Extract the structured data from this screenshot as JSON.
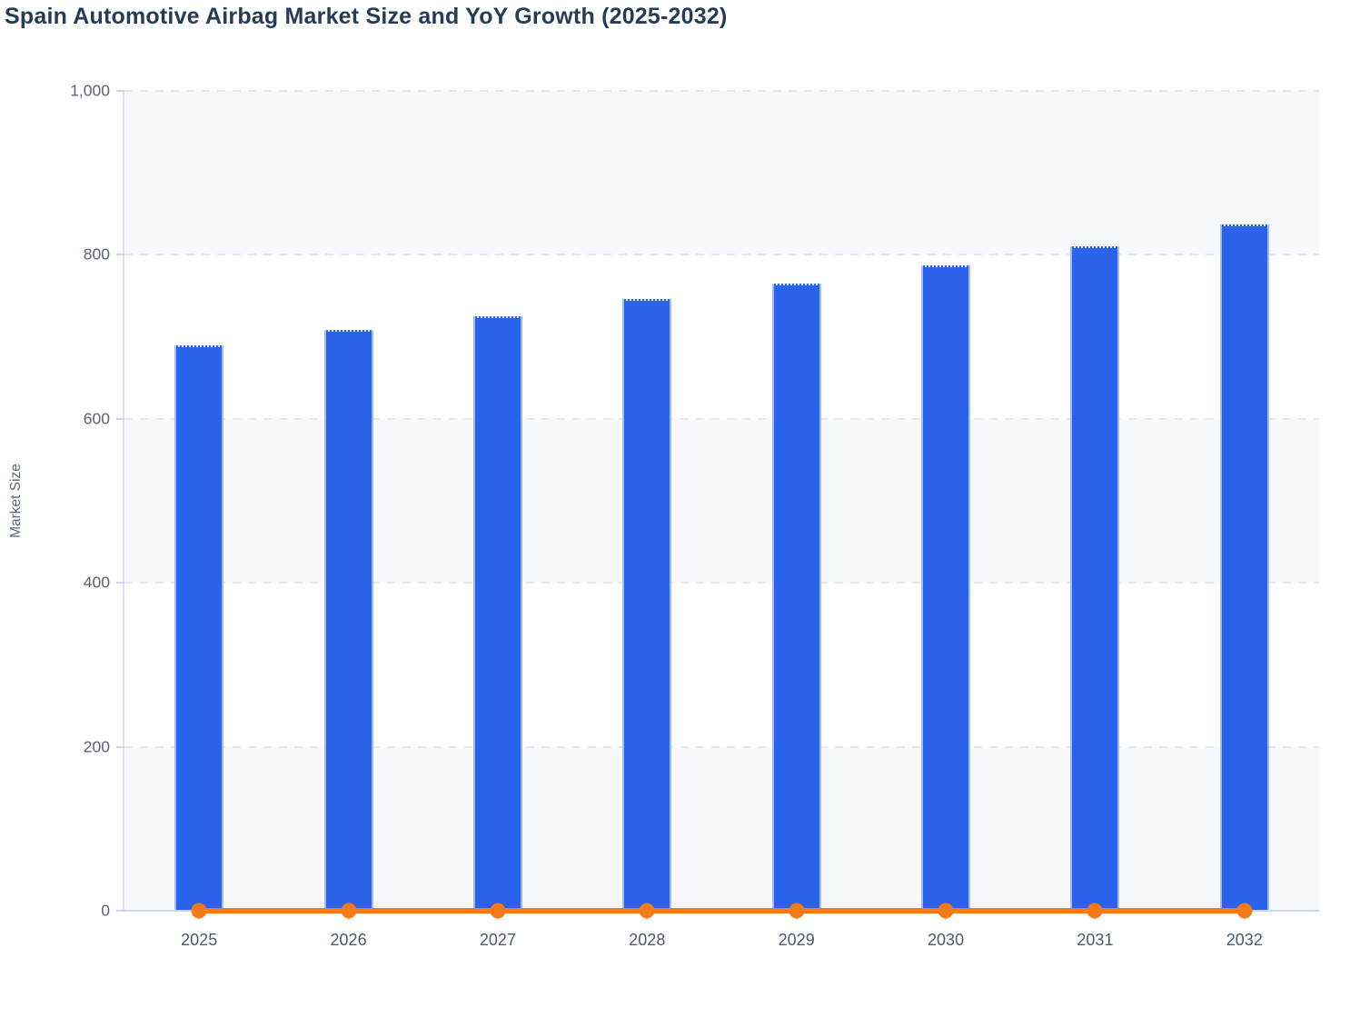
{
  "page": {
    "title": "Spain Automotive Airbag Market Size and YoY Growth (2025-2032)"
  },
  "chart_data": {
    "type": "bar",
    "title": "Spain Automotive Airbag Market Size and YoY Growth (2025-2032)",
    "xlabel": "",
    "ylabel": "Market Size",
    "ylim": [
      0,
      1000
    ],
    "yticks": [
      0,
      200,
      400,
      600,
      800,
      1000
    ],
    "ytick_labels": [
      "0",
      "200",
      "400",
      "600",
      "800",
      "1,000"
    ],
    "categories": [
      "2025",
      "2026",
      "2027",
      "2028",
      "2029",
      "2030",
      "2031",
      "2032"
    ],
    "series": [
      {
        "name": "Market Size",
        "type": "bar",
        "color": "#2a63e9",
        "values": [
          690,
          708,
          725,
          746,
          765,
          787,
          810,
          837
        ]
      },
      {
        "name": "YoY Growth",
        "type": "line",
        "color": "#f57a18",
        "values": [
          0,
          0,
          0,
          0,
          0,
          0,
          0,
          0
        ]
      }
    ],
    "grid": "horizontal-dashed",
    "legend": "none",
    "plot_band_colors": [
      "#f7f8fb",
      "#ffffff"
    ]
  },
  "colors": {
    "title_text": "#253c59",
    "axis_label_text": "#5b6478",
    "x_label_text": "#4e596d",
    "axis_line": "#dde3f3",
    "baseline": "#ccd6ea",
    "gridline": "#e3e7f0",
    "tick_mark": "#ccd5ee",
    "bar_fill": "#2a63e9",
    "line_stroke": "#f57a18"
  }
}
